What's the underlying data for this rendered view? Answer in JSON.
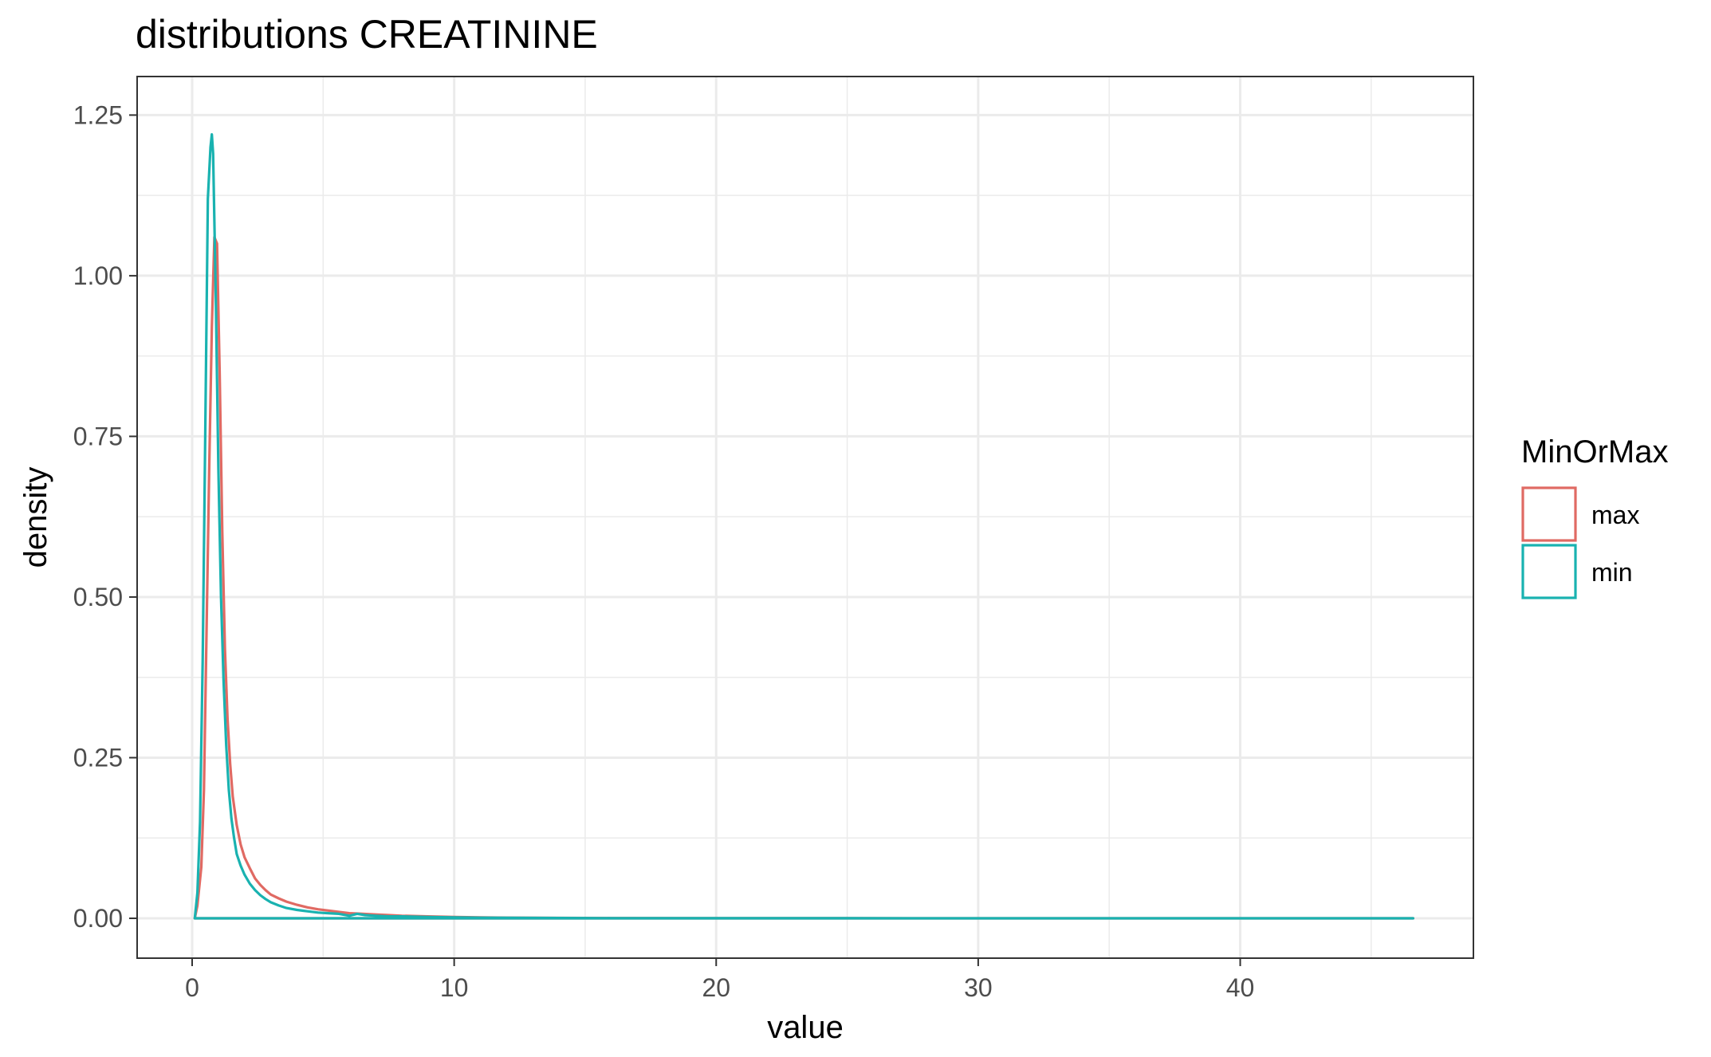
{
  "chart_data": {
    "type": "line",
    "title": "distributions CREATININE",
    "xlabel": "value",
    "ylabel": "density",
    "xlim": [
      -2.1,
      48.9
    ],
    "ylim": [
      -0.062,
      1.31
    ],
    "x_ticks": [
      0,
      10,
      20,
      30,
      40
    ],
    "x_tick_labels": [
      "0",
      "10",
      "20",
      "30",
      "40"
    ],
    "y_ticks": [
      0,
      0.25,
      0.5,
      0.75,
      1.0,
      1.25
    ],
    "y_tick_labels": [
      "0.00",
      "0.25",
      "0.50",
      "0.75",
      "1.00",
      "1.25"
    ],
    "grid": true,
    "legend": {
      "title": "MinOrMax",
      "position": "right",
      "entries": [
        "max",
        "min"
      ]
    },
    "series": [
      {
        "name": "max",
        "color": "#e06a63",
        "x": [
          0.1,
          0.2,
          0.35,
          0.45,
          0.55,
          0.65,
          0.75,
          0.85,
          0.95,
          1.05,
          1.15,
          1.25,
          1.35,
          1.45,
          1.55,
          1.7,
          1.85,
          2.0,
          2.2,
          2.4,
          2.6,
          2.8,
          3.0,
          3.3,
          3.6,
          4.0,
          4.4,
          4.8,
          5.2,
          5.6,
          6.0,
          6.5,
          7.0,
          7.5,
          8.0,
          9.0,
          10.0,
          11.0,
          12.0,
          14.0,
          16.0,
          20.0,
          25.0,
          30.0,
          35.0,
          40.0,
          46.6,
          40.0,
          30.0,
          20.0,
          10.0,
          5.0,
          1.0,
          0.1
        ],
        "y": [
          0.0,
          0.02,
          0.08,
          0.2,
          0.45,
          0.7,
          0.92,
          1.06,
          1.05,
          0.85,
          0.6,
          0.42,
          0.31,
          0.24,
          0.19,
          0.145,
          0.115,
          0.095,
          0.078,
          0.062,
          0.052,
          0.044,
          0.037,
          0.031,
          0.026,
          0.021,
          0.017,
          0.014,
          0.012,
          0.01,
          0.008,
          0.007,
          0.006,
          0.005,
          0.004,
          0.003,
          0.002,
          0.0015,
          0.001,
          0.0006,
          0.0004,
          0.0002,
          0.0001,
          0.0,
          0.0,
          0.0,
          0.0,
          0.0,
          0.0,
          0.0,
          0.0,
          0.0,
          0.0,
          0.0
        ]
      },
      {
        "name": "min",
        "color": "#19b2b0",
        "x": [
          0.1,
          0.2,
          0.3,
          0.4,
          0.5,
          0.6,
          0.7,
          0.75,
          0.8,
          0.9,
          1.0,
          1.1,
          1.2,
          1.3,
          1.4,
          1.5,
          1.6,
          1.7,
          1.85,
          2.0,
          2.2,
          2.4,
          2.6,
          2.8,
          3.0,
          3.3,
          3.6,
          4.0,
          4.4,
          4.8,
          5.2,
          5.6,
          6.0,
          6.3,
          6.6,
          7.0,
          7.5,
          8.0,
          9.0,
          10.0,
          11.0,
          12.0,
          14.0,
          16.0,
          20.0,
          25.0,
          30.0,
          35.0,
          40.0,
          46.6,
          40.0,
          30.0,
          20.0,
          10.0,
          5.0,
          1.0,
          0.1
        ],
        "y": [
          0.0,
          0.04,
          0.15,
          0.4,
          0.75,
          1.12,
          1.2,
          1.22,
          1.19,
          0.97,
          0.7,
          0.5,
          0.37,
          0.27,
          0.2,
          0.155,
          0.125,
          0.1,
          0.082,
          0.068,
          0.054,
          0.044,
          0.036,
          0.03,
          0.025,
          0.02,
          0.016,
          0.013,
          0.011,
          0.009,
          0.008,
          0.007,
          0.004,
          0.007,
          0.005,
          0.004,
          0.003,
          0.003,
          0.002,
          0.0015,
          0.001,
          0.0008,
          0.0005,
          0.0003,
          0.0002,
          0.0001,
          0.0,
          0.0,
          0.0,
          0.0,
          0.0,
          0.0,
          0.0,
          0.0,
          0.0,
          0.0,
          0.0
        ]
      }
    ]
  }
}
